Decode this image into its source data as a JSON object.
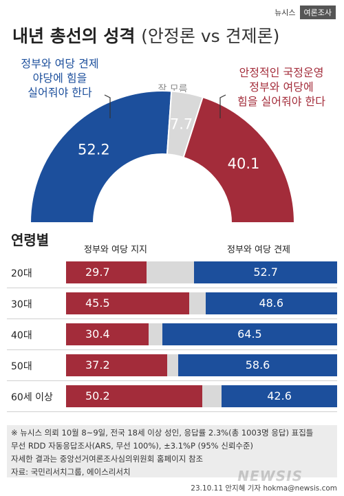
{
  "brand": {
    "left": "뉴시스",
    "right": "여론조사"
  },
  "title": {
    "main": "내년 총선의 성격",
    "sub": "(안정론 vs 견제론)"
  },
  "labels": {
    "left": [
      "정부와 여당 견제",
      "야당에 힘을",
      "실어줘야 한다"
    ],
    "middle": "잘 모름",
    "right": [
      "안정적인 국정운영",
      "정부와 여당에",
      "힘을 실어줘야 한다"
    ]
  },
  "section_title": "연령별",
  "legend": {
    "left": "정부와 여당 지지",
    "right": "정부와 여당 견제"
  },
  "colors": {
    "support": "#a32c3a",
    "oversight": "#1c4f9c",
    "unknown": "#d9d9d9"
  },
  "chart_data": [
    {
      "type": "pie",
      "variant": "semicircle-donut",
      "slices": [
        {
          "label": "정부와 여당 견제 야당에 힘을 실어줘야 한다",
          "value": 52.2
        },
        {
          "label": "잘 모름",
          "value": 7.7
        },
        {
          "label": "안정적인 국정운영 정부와 여당에 힘을 실어줘야 한다",
          "value": 40.1
        }
      ]
    },
    {
      "type": "bar",
      "orientation": "horizontal",
      "stacked": true,
      "categories": [
        "20대",
        "30대",
        "40대",
        "50대",
        "60세 이상"
      ],
      "series": [
        {
          "name": "정부와 여당 지지",
          "values": [
            29.7,
            45.5,
            30.4,
            37.2,
            50.2
          ]
        },
        {
          "name": "정부와 여당 견제",
          "values": [
            52.7,
            48.6,
            64.5,
            58.6,
            42.6
          ]
        }
      ]
    }
  ],
  "notes": [
    "※ 뉴시스 의뢰 10월 8~9일, 전국 18세 이상 성인, 응답률 2.3%(총 1003명 응답) 표집틀",
    "무선 RDD 자동응답조사(ARS, 무선 100%), ±3.1%P (95% 신뢰수준)",
    "자세한 결과는 중앙선거여론조사심의위원회 홈페이지 참조",
    "자료: 국민리서치그룹, 에이스리서치"
  ],
  "credit": "23.10.11 안지혜 기자 hokma@newsis.com",
  "watermark": "NEWSIS"
}
